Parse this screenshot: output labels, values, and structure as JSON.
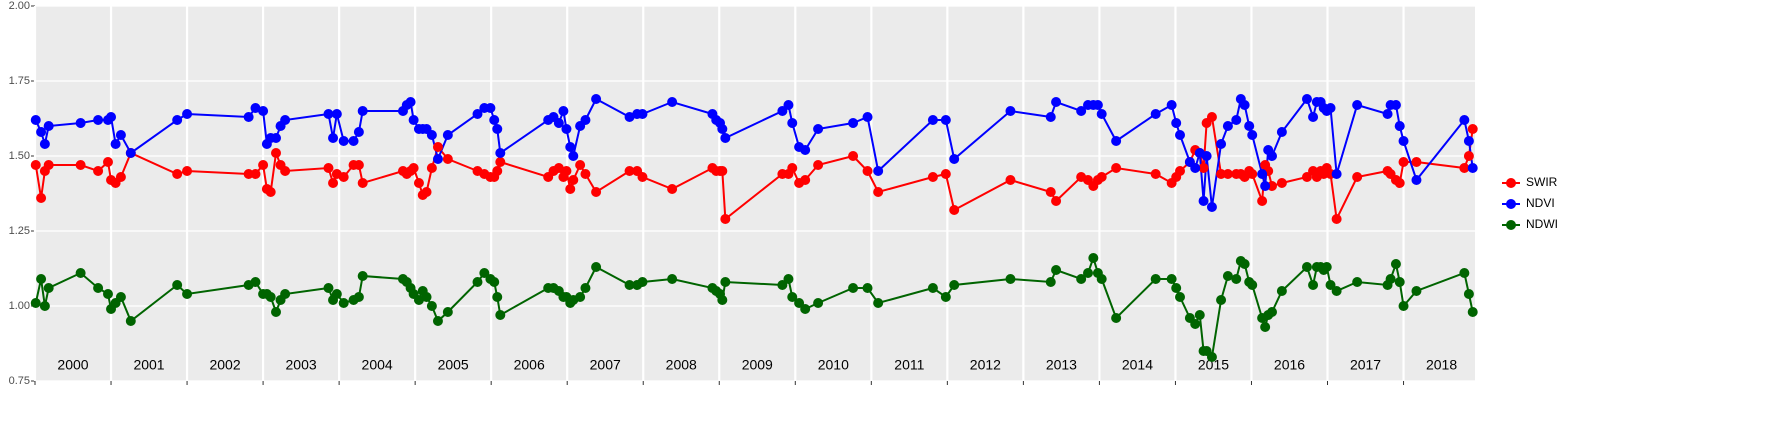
{
  "chart_data": {
    "type": "line",
    "x": [
      2000.01,
      2000.08,
      2000.13,
      2000.18,
      2000.6,
      2000.83,
      2000.96,
      2001.0,
      2001.06,
      2001.13,
      2001.26,
      2001.87,
      2002.0,
      2002.81,
      2002.9,
      2003.0,
      2003.05,
      2003.1,
      2003.17,
      2003.23,
      2003.29,
      2003.86,
      2003.92,
      2003.97,
      2004.06,
      2004.19,
      2004.26,
      2004.31,
      2004.84,
      2004.89,
      2004.94,
      2004.98,
      2005.05,
      2005.1,
      2005.15,
      2005.22,
      2005.3,
      2005.43,
      2005.82,
      2005.91,
      2005.99,
      2006.04,
      2006.08,
      2006.12,
      2006.75,
      2006.82,
      2006.89,
      2006.95,
      2006.99,
      2007.04,
      2007.08,
      2007.17,
      2007.24,
      2007.38,
      2007.82,
      2007.92,
      2007.99,
      2008.38,
      2008.91,
      2008.96,
      2009.01,
      2009.04,
      2009.08,
      2009.83,
      2009.91,
      2009.96,
      2010.05,
      2010.13,
      2010.3,
      2010.76,
      2010.95,
      2011.09,
      2011.81,
      2011.98,
      2012.09,
      2012.83,
      2013.36,
      2013.43,
      2013.76,
      2013.85,
      2013.92,
      2013.98,
      2014.03,
      2014.22,
      2014.74,
      2014.95,
      2015.01,
      2015.06,
      2015.19,
      2015.26,
      2015.32,
      2015.37,
      2015.41,
      2015.48,
      2015.6,
      2015.69,
      2015.8,
      2015.86,
      2015.91,
      2015.97,
      2016.01,
      2016.14,
      2016.18,
      2016.22,
      2016.27,
      2016.4,
      2016.73,
      2016.81,
      2016.86,
      2016.91,
      2016.95,
      2016.99,
      2017.04,
      2017.12,
      2017.39,
      2017.79,
      2017.83,
      2017.9,
      2017.95,
      2018.0,
      2018.17,
      2018.8,
      2018.86,
      2018.91
    ],
    "series": [
      {
        "name": "SWIR",
        "color": "#ff0000",
        "values": [
          1.47,
          1.36,
          1.45,
          1.47,
          1.47,
          1.45,
          1.48,
          1.42,
          1.41,
          1.43,
          1.51,
          1.44,
          1.45,
          1.44,
          1.44,
          1.47,
          1.39,
          1.38,
          1.51,
          1.47,
          1.45,
          1.46,
          1.41,
          1.44,
          1.43,
          1.47,
          1.47,
          1.41,
          1.45,
          1.44,
          1.45,
          1.46,
          1.41,
          1.37,
          1.38,
          1.46,
          1.53,
          1.49,
          1.45,
          1.44,
          1.43,
          1.43,
          1.45,
          1.48,
          1.43,
          1.45,
          1.46,
          1.43,
          1.45,
          1.39,
          1.42,
          1.47,
          1.44,
          1.38,
          1.45,
          1.45,
          1.43,
          1.39,
          1.46,
          1.45,
          1.45,
          1.45,
          1.29,
          1.44,
          1.44,
          1.46,
          1.41,
          1.42,
          1.47,
          1.5,
          1.45,
          1.38,
          1.43,
          1.44,
          1.32,
          1.42,
          1.38,
          1.35,
          1.43,
          1.42,
          1.4,
          1.42,
          1.43,
          1.46,
          1.44,
          1.41,
          1.43,
          1.45,
          1.48,
          1.52,
          1.51,
          1.46,
          1.61,
          1.63,
          1.44,
          1.44,
          1.44,
          1.44,
          1.43,
          1.45,
          1.44,
          1.35,
          1.47,
          1.45,
          1.4,
          1.41,
          1.43,
          1.45,
          1.43,
          1.45,
          1.44,
          1.46,
          1.44,
          1.29,
          1.43,
          1.45,
          1.44,
          1.42,
          1.41,
          1.48,
          1.48,
          1.46,
          1.5,
          1.59
        ]
      },
      {
        "name": "NDVI",
        "color": "#0000ff",
        "values": [
          1.62,
          1.58,
          1.54,
          1.6,
          1.61,
          1.62,
          1.62,
          1.63,
          1.54,
          1.57,
          1.51,
          1.62,
          1.64,
          1.63,
          1.66,
          1.65,
          1.54,
          1.56,
          1.56,
          1.6,
          1.62,
          1.64,
          1.56,
          1.64,
          1.55,
          1.55,
          1.58,
          1.65,
          1.65,
          1.67,
          1.68,
          1.62,
          1.59,
          1.59,
          1.59,
          1.57,
          1.49,
          1.57,
          1.64,
          1.66,
          1.66,
          1.62,
          1.59,
          1.51,
          1.62,
          1.63,
          1.61,
          1.65,
          1.59,
          1.53,
          1.5,
          1.6,
          1.62,
          1.69,
          1.63,
          1.64,
          1.64,
          1.68,
          1.64,
          1.62,
          1.61,
          1.59,
          1.56,
          1.65,
          1.67,
          1.61,
          1.53,
          1.52,
          1.59,
          1.61,
          1.63,
          1.45,
          1.62,
          1.62,
          1.49,
          1.65,
          1.63,
          1.68,
          1.65,
          1.67,
          1.67,
          1.67,
          1.64,
          1.55,
          1.64,
          1.67,
          1.61,
          1.57,
          1.48,
          1.46,
          1.51,
          1.35,
          1.5,
          1.33,
          1.54,
          1.6,
          1.62,
          1.69,
          1.67,
          1.6,
          1.57,
          1.44,
          1.4,
          1.52,
          1.5,
          1.58,
          1.69,
          1.63,
          1.68,
          1.68,
          1.66,
          1.65,
          1.66,
          1.44,
          1.67,
          1.64,
          1.67,
          1.67,
          1.6,
          1.55,
          1.42,
          1.62,
          1.55,
          1.46
        ]
      },
      {
        "name": "NDWI",
        "color": "#006400",
        "values": [
          1.01,
          1.09,
          1.0,
          1.06,
          1.11,
          1.06,
          1.04,
          0.99,
          1.01,
          1.03,
          0.95,
          1.07,
          1.04,
          1.07,
          1.08,
          1.04,
          1.04,
          1.03,
          0.98,
          1.02,
          1.04,
          1.06,
          1.02,
          1.04,
          1.01,
          1.02,
          1.03,
          1.1,
          1.09,
          1.08,
          1.06,
          1.04,
          1.02,
          1.05,
          1.03,
          1.0,
          0.95,
          0.98,
          1.08,
          1.11,
          1.09,
          1.08,
          1.03,
          0.97,
          1.06,
          1.06,
          1.05,
          1.03,
          1.03,
          1.01,
          1.02,
          1.03,
          1.06,
          1.13,
          1.07,
          1.07,
          1.08,
          1.09,
          1.06,
          1.05,
          1.04,
          1.02,
          1.08,
          1.07,
          1.09,
          1.03,
          1.01,
          0.99,
          1.01,
          1.06,
          1.06,
          1.01,
          1.06,
          1.03,
          1.07,
          1.09,
          1.08,
          1.12,
          1.09,
          1.11,
          1.16,
          1.11,
          1.09,
          0.96,
          1.09,
          1.09,
          1.06,
          1.03,
          0.96,
          0.94,
          0.97,
          0.85,
          0.85,
          0.83,
          1.02,
          1.1,
          1.09,
          1.15,
          1.14,
          1.08,
          1.07,
          0.96,
          0.93,
          0.97,
          0.98,
          1.05,
          1.13,
          1.07,
          1.13,
          1.13,
          1.12,
          1.13,
          1.07,
          1.05,
          1.08,
          1.07,
          1.09,
          1.14,
          1.08,
          1.0,
          1.05,
          1.11,
          1.04,
          0.98
        ]
      }
    ],
    "xlim": [
      2000,
      2018.94
    ],
    "xticks": [
      2000,
      2001,
      2002,
      2003,
      2004,
      2005,
      2006,
      2007,
      2008,
      2009,
      2010,
      2011,
      2012,
      2013,
      2014,
      2015,
      2016,
      2017,
      2018
    ],
    "year_labels": [
      "2000",
      "2001",
      "2002",
      "2003",
      "2004",
      "2005",
      "2006",
      "2007",
      "2008",
      "2009",
      "2010",
      "2011",
      "2012",
      "2013",
      "2014",
      "2015",
      "2016",
      "2017",
      "2018"
    ],
    "ylim": [
      0.75,
      2.0
    ],
    "yticks": [
      {
        "value": 0.75,
        "label": "0.75"
      },
      {
        "value": 1.0,
        "label": "1.00"
      },
      {
        "value": 1.25,
        "label": "1.25"
      },
      {
        "value": 1.5,
        "label": "1.50"
      },
      {
        "value": 1.75,
        "label": "1.75"
      },
      {
        "value": 2.0,
        "label": "2.00"
      }
    ],
    "grid": true,
    "legend": "right"
  }
}
